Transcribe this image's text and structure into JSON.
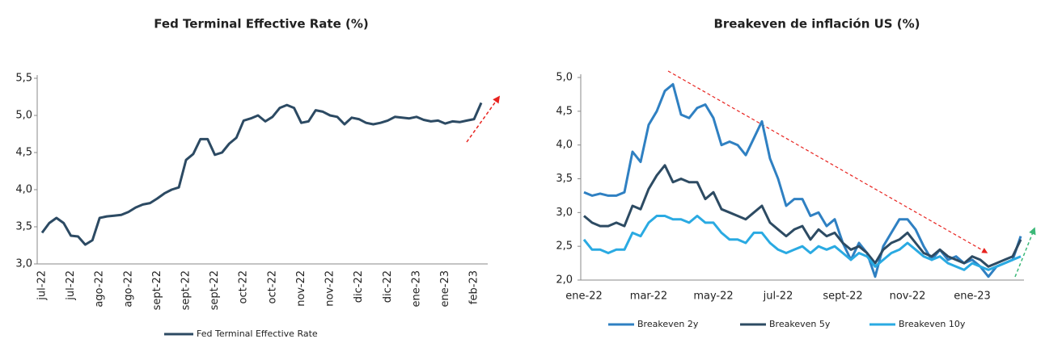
{
  "chart_data": [
    {
      "type": "line",
      "title": "Fed Terminal Effective Rate (%)",
      "categories": [
        "jul-22",
        null,
        null,
        null,
        "jul-22",
        null,
        null,
        null,
        "ago-22",
        null,
        null,
        null,
        "ago-22",
        null,
        null,
        null,
        "sept-22",
        null,
        null,
        null,
        "sept-22",
        null,
        null,
        null,
        "sept-22",
        null,
        null,
        null,
        "oct-22",
        null,
        null,
        null,
        "oct-22",
        null,
        null,
        null,
        "nov-22",
        null,
        null,
        null,
        "nov-22",
        null,
        null,
        null,
        "dic-22",
        null,
        null,
        null,
        "dic-22",
        null,
        null,
        null,
        "ene-23",
        null,
        null,
        null,
        "ene-23",
        null,
        null,
        null,
        "feb-23",
        null
      ],
      "series": [
        {
          "name": "Fed Terminal Effective Rate",
          "color": "#2c4a63",
          "values": [
            3.42,
            3.55,
            3.62,
            3.55,
            3.38,
            3.37,
            3.26,
            3.32,
            3.62,
            3.64,
            3.65,
            3.66,
            3.7,
            3.76,
            3.8,
            3.82,
            3.88,
            3.95,
            4.0,
            4.03,
            4.4,
            4.48,
            4.68,
            4.68,
            4.47,
            4.5,
            4.62,
            4.7,
            4.93,
            4.96,
            5.0,
            4.92,
            4.98,
            5.1,
            5.14,
            5.1,
            4.9,
            4.92,
            5.07,
            5.05,
            5.0,
            4.98,
            4.88,
            4.97,
            4.95,
            4.9,
            4.88,
            4.9,
            4.93,
            4.98,
            4.97,
            4.96,
            4.98,
            4.94,
            4.92,
            4.93,
            4.89,
            4.92,
            4.91,
            4.93,
            4.95,
            5.17
          ]
        }
      ],
      "ylim": [
        3,
        5.5
      ],
      "yticks": [
        {
          "value": 3,
          "label": "3,0"
        },
        {
          "value": 3.5,
          "label": "3,5"
        },
        {
          "value": 4,
          "label": "4,0"
        },
        {
          "value": 4.5,
          "label": "4,5"
        },
        {
          "value": 5,
          "label": "5,0"
        },
        {
          "value": 5.5,
          "label": "5,5"
        }
      ],
      "grid": false,
      "legend": "bottom"
    },
    {
      "type": "line",
      "title": "Breakeven de inflación US (%)",
      "categories": [
        "ene-22",
        null,
        null,
        null,
        null,
        null,
        null,
        null,
        "mar-22",
        null,
        null,
        null,
        null,
        null,
        null,
        null,
        "may-22",
        null,
        null,
        null,
        null,
        null,
        null,
        null,
        "jul-22",
        null,
        null,
        null,
        null,
        null,
        null,
        null,
        "sept-22",
        null,
        null,
        null,
        null,
        null,
        null,
        null,
        "nov-22",
        null,
        null,
        null,
        null,
        null,
        null,
        null,
        "ene-23",
        null,
        null,
        null,
        null,
        null,
        null
      ],
      "series": [
        {
          "name": "Breakeven 2y",
          "color": "#2f80c2",
          "values": [
            3.3,
            3.25,
            3.28,
            3.25,
            3.25,
            3.3,
            3.9,
            3.75,
            4.3,
            4.5,
            4.8,
            4.9,
            4.45,
            4.4,
            4.55,
            4.6,
            4.4,
            4.0,
            4.05,
            4.0,
            3.85,
            4.1,
            4.35,
            3.8,
            3.5,
            3.1,
            3.2,
            3.2,
            2.95,
            3.0,
            2.8,
            2.9,
            2.55,
            2.3,
            2.55,
            2.4,
            2.05,
            2.5,
            2.7,
            2.9,
            2.9,
            2.75,
            2.5,
            2.3,
            2.45,
            2.3,
            2.35,
            2.25,
            2.3,
            2.2,
            2.05,
            2.2,
            2.25,
            2.3,
            2.65
          ]
        },
        {
          "name": "Breakeven 5y",
          "color": "#2d4b63",
          "values": [
            2.95,
            2.85,
            2.8,
            2.8,
            2.85,
            2.8,
            3.1,
            3.05,
            3.35,
            3.55,
            3.7,
            3.45,
            3.5,
            3.45,
            3.45,
            3.2,
            3.3,
            3.05,
            3.0,
            2.95,
            2.9,
            3.0,
            3.1,
            2.85,
            2.75,
            2.65,
            2.75,
            2.8,
            2.6,
            2.75,
            2.65,
            2.7,
            2.55,
            2.45,
            2.5,
            2.4,
            2.25,
            2.45,
            2.55,
            2.6,
            2.7,
            2.55,
            2.4,
            2.35,
            2.45,
            2.35,
            2.3,
            2.25,
            2.35,
            2.3,
            2.2,
            2.25,
            2.3,
            2.35,
            2.6
          ]
        },
        {
          "name": "Breakeven 10y",
          "color": "#2aaae2",
          "values": [
            2.6,
            2.45,
            2.45,
            2.4,
            2.45,
            2.45,
            2.7,
            2.65,
            2.85,
            2.95,
            2.95,
            2.9,
            2.9,
            2.85,
            2.95,
            2.85,
            2.85,
            2.7,
            2.6,
            2.6,
            2.55,
            2.7,
            2.7,
            2.55,
            2.45,
            2.4,
            2.45,
            2.5,
            2.4,
            2.5,
            2.45,
            2.5,
            2.4,
            2.3,
            2.4,
            2.35,
            2.2,
            2.3,
            2.4,
            2.45,
            2.55,
            2.45,
            2.35,
            2.3,
            2.35,
            2.25,
            2.2,
            2.15,
            2.25,
            2.2,
            2.15,
            2.2,
            2.25,
            2.3,
            2.35
          ]
        }
      ],
      "ylim": [
        2,
        5
      ],
      "yticks": [
        {
          "value": 2,
          "label": "2,0"
        },
        {
          "value": 2.5,
          "label": "2,5"
        },
        {
          "value": 3,
          "label": "3,0"
        },
        {
          "value": 3.5,
          "label": "3,5"
        },
        {
          "value": 4,
          "label": "4,0"
        },
        {
          "value": 4.5,
          "label": "4,5"
        },
        {
          "value": 5,
          "label": "5,0"
        }
      ],
      "grid": false,
      "legend": "bottom"
    }
  ]
}
